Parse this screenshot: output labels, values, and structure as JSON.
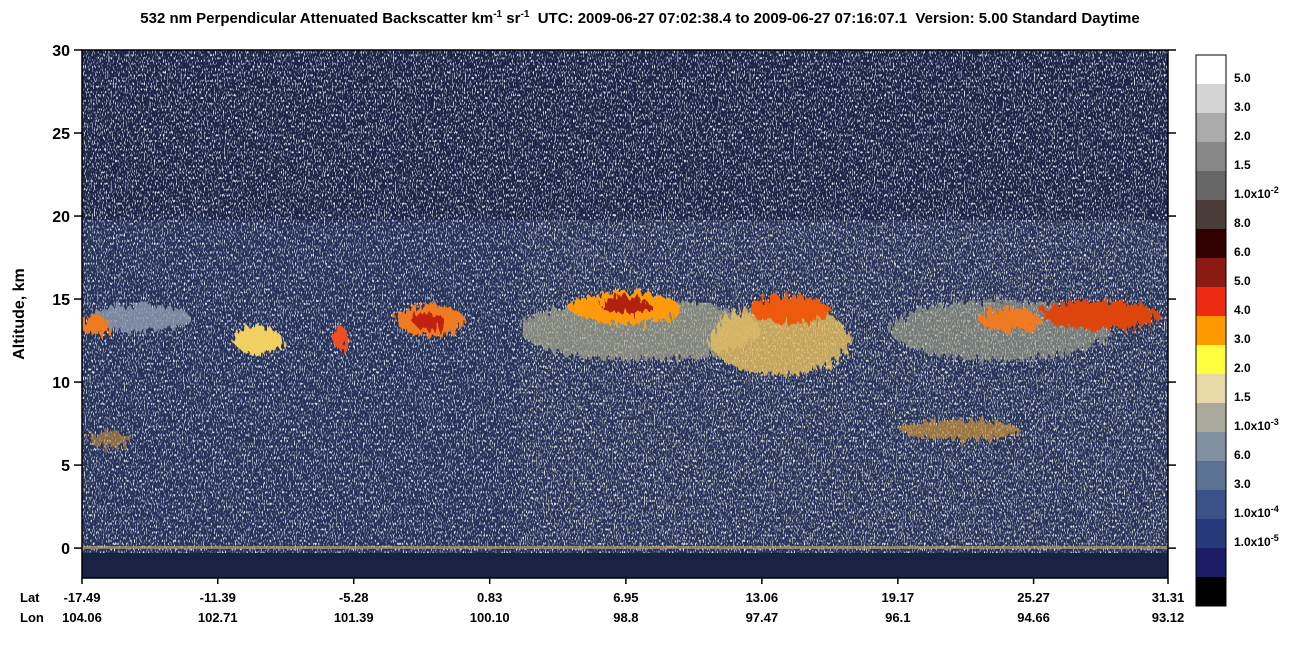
{
  "chart_data": {
    "type": "heatmap",
    "title": [
      "532 nm Perpendicular Attenuated Backscatter km",
      "-1",
      " sr",
      "-1",
      "  UTC: 2009-06-27 07:02:38.4 to 2009-06-27 07:16:07.1  Version: 5.00 Standard Daytime"
    ],
    "ylabel": "Altitude, km",
    "ylim": [
      -1.8,
      30
    ],
    "yticks": [
      0,
      5,
      10,
      15,
      20,
      25,
      30
    ],
    "x_row_labels": [
      "Lat",
      "Lon"
    ],
    "xlim": [
      -17.49,
      31.31
    ],
    "xticks": [
      -17.49,
      -11.39,
      -5.28,
      0.83,
      6.95,
      13.06,
      19.17,
      25.27,
      31.31
    ],
    "lon_labels": [
      104.06,
      102.71,
      101.39,
      {
        "value": 100.1,
        "label": "100.10"
      },
      98.8,
      97.47,
      96.1,
      94.66,
      93.12
    ],
    "colorbar": {
      "colors": [
        "#ffffff",
        "#d4d4d4",
        "#aaaaaa",
        "#888888",
        "#666666",
        "#4a3c38",
        "#320000",
        "#8b1a12",
        "#ee2a10",
        "#ff9900",
        "#ffff40",
        "#e8d8a8",
        "#aaaa9c",
        "#7f8f9f",
        "#5a7194",
        "#3a5288",
        "#26397a",
        "#1c1c66",
        "#000000"
      ],
      "labels": [
        "5.0",
        "3.0",
        "2.0",
        "1.5",
        {
          "text": "1.0x10",
          "sup": "-2"
        },
        "8.0",
        "6.0",
        "5.0",
        "4.0",
        "3.0",
        "2.0",
        "1.5",
        {
          "text": "1.0x10",
          "sup": "-3"
        },
        "6.0",
        "3.0",
        {
          "text": "1.0x10",
          "sup": "-4"
        },
        {
          "text": "1.0x10",
          "sup": "-5"
        }
      ]
    }
  }
}
